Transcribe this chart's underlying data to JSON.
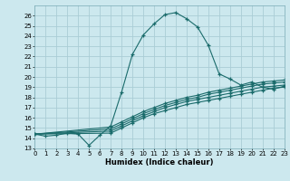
{
  "xlabel": "Humidex (Indice chaleur)",
  "bg_color": "#cce8ee",
  "grid_color": "#aacdd6",
  "line_color": "#1a6b6b",
  "xlim": [
    0,
    23
  ],
  "ylim": [
    13,
    27
  ],
  "yticks": [
    13,
    14,
    15,
    16,
    17,
    18,
    19,
    20,
    21,
    22,
    23,
    24,
    25,
    26
  ],
  "xticks": [
    0,
    1,
    2,
    3,
    4,
    5,
    6,
    7,
    8,
    9,
    10,
    11,
    12,
    13,
    14,
    15,
    16,
    17,
    18,
    19,
    20,
    21,
    22,
    23
  ],
  "main_line_x": [
    0,
    1,
    2,
    3,
    4,
    5,
    6,
    7,
    8,
    9,
    10,
    11,
    12,
    13,
    14,
    15,
    16,
    17,
    18,
    19,
    20,
    21,
    22,
    23
  ],
  "main_line_y": [
    14.4,
    14.2,
    14.3,
    14.5,
    14.4,
    13.3,
    14.3,
    15.2,
    18.5,
    22.2,
    24.1,
    25.2,
    26.1,
    26.3,
    25.7,
    24.9,
    23.1,
    20.3,
    19.8,
    19.2,
    19.5,
    19.0,
    18.8,
    19.1
  ],
  "extra_lines": [
    {
      "x": [
        0,
        7,
        8,
        9,
        10,
        11,
        12,
        13,
        14,
        15,
        16,
        17,
        18,
        19,
        20,
        21,
        22,
        23
      ],
      "y": [
        14.4,
        14.5,
        15.0,
        15.5,
        16.0,
        16.4,
        16.7,
        17.0,
        17.3,
        17.5,
        17.7,
        17.9,
        18.1,
        18.3,
        18.5,
        18.7,
        18.9,
        19.0
      ]
    },
    {
      "x": [
        0,
        7,
        8,
        9,
        10,
        11,
        12,
        13,
        14,
        15,
        16,
        17,
        18,
        19,
        20,
        21,
        22,
        23
      ],
      "y": [
        14.4,
        14.7,
        15.2,
        15.7,
        16.2,
        16.6,
        17.0,
        17.3,
        17.6,
        17.8,
        18.0,
        18.2,
        18.4,
        18.6,
        18.8,
        19.0,
        19.1,
        19.2
      ]
    },
    {
      "x": [
        0,
        7,
        8,
        9,
        10,
        11,
        12,
        13,
        14,
        15,
        16,
        17,
        18,
        19,
        20,
        21,
        22,
        23
      ],
      "y": [
        14.4,
        14.9,
        15.4,
        15.9,
        16.4,
        16.8,
        17.2,
        17.5,
        17.8,
        18.0,
        18.3,
        18.5,
        18.7,
        18.9,
        19.1,
        19.3,
        19.4,
        19.5
      ]
    },
    {
      "x": [
        0,
        7,
        8,
        9,
        10,
        11,
        12,
        13,
        14,
        15,
        16,
        17,
        18,
        19,
        20,
        21,
        22,
        23
      ],
      "y": [
        14.4,
        15.1,
        15.6,
        16.1,
        16.6,
        17.0,
        17.4,
        17.7,
        18.0,
        18.2,
        18.5,
        18.7,
        18.9,
        19.1,
        19.3,
        19.5,
        19.6,
        19.7
      ]
    }
  ]
}
